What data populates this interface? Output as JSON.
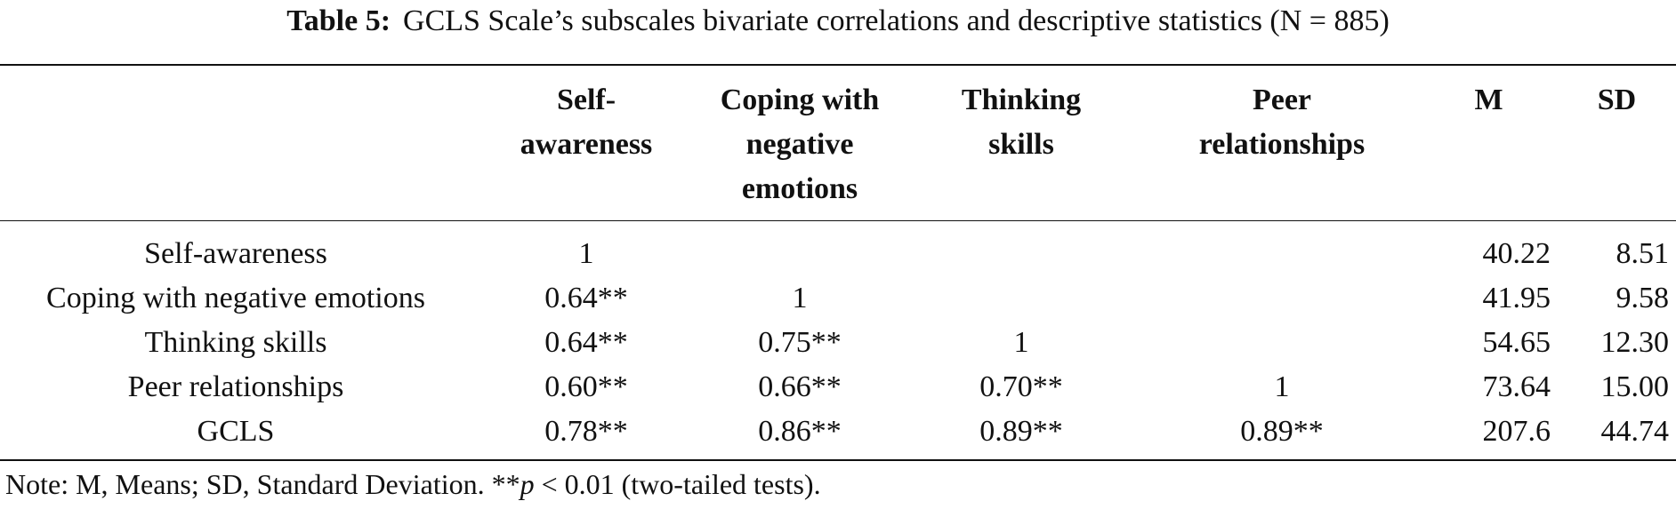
{
  "caption": {
    "label": "Table 5:",
    "text": "GCLS Scale’s subscales bivariate correlations and descriptive statistics (N = 885)"
  },
  "table": {
    "headers": {
      "row_label": "",
      "c1": "Self-awareness",
      "c2": "Coping with negative emotions",
      "c3": "Thinking skills",
      "c4": "Peer relationships",
      "c5": "M",
      "c6": "SD"
    },
    "rows": [
      {
        "label": "Self-awareness",
        "c1": "1",
        "c2": "",
        "c3": "",
        "c4": "",
        "m": "40.22",
        "sd": "8.51"
      },
      {
        "label": "Coping with negative emotions",
        "c1": "0.64**",
        "c2": "1",
        "c3": "",
        "c4": "",
        "m": "41.95",
        "sd": "9.58"
      },
      {
        "label": "Thinking skills",
        "c1": "0.64**",
        "c2": "0.75**",
        "c3": "1",
        "c4": "",
        "m": "54.65",
        "sd": "12.30"
      },
      {
        "label": "Peer relationships",
        "c1": "0.60**",
        "c2": "0.66**",
        "c3": "0.70**",
        "c4": "1",
        "m": "73.64",
        "sd": "15.00"
      },
      {
        "label": "GCLS",
        "c1": "0.78**",
        "c2": "0.86**",
        "c3": "0.89**",
        "c4": "0.89**",
        "m": "207.6",
        "sd": "44.74"
      }
    ]
  },
  "note": {
    "prefix": "Note: M, Means; SD, Standard Deviation. **",
    "p_symbol": "p",
    "suffix": " < 0.01 (two-tailed tests)."
  }
}
